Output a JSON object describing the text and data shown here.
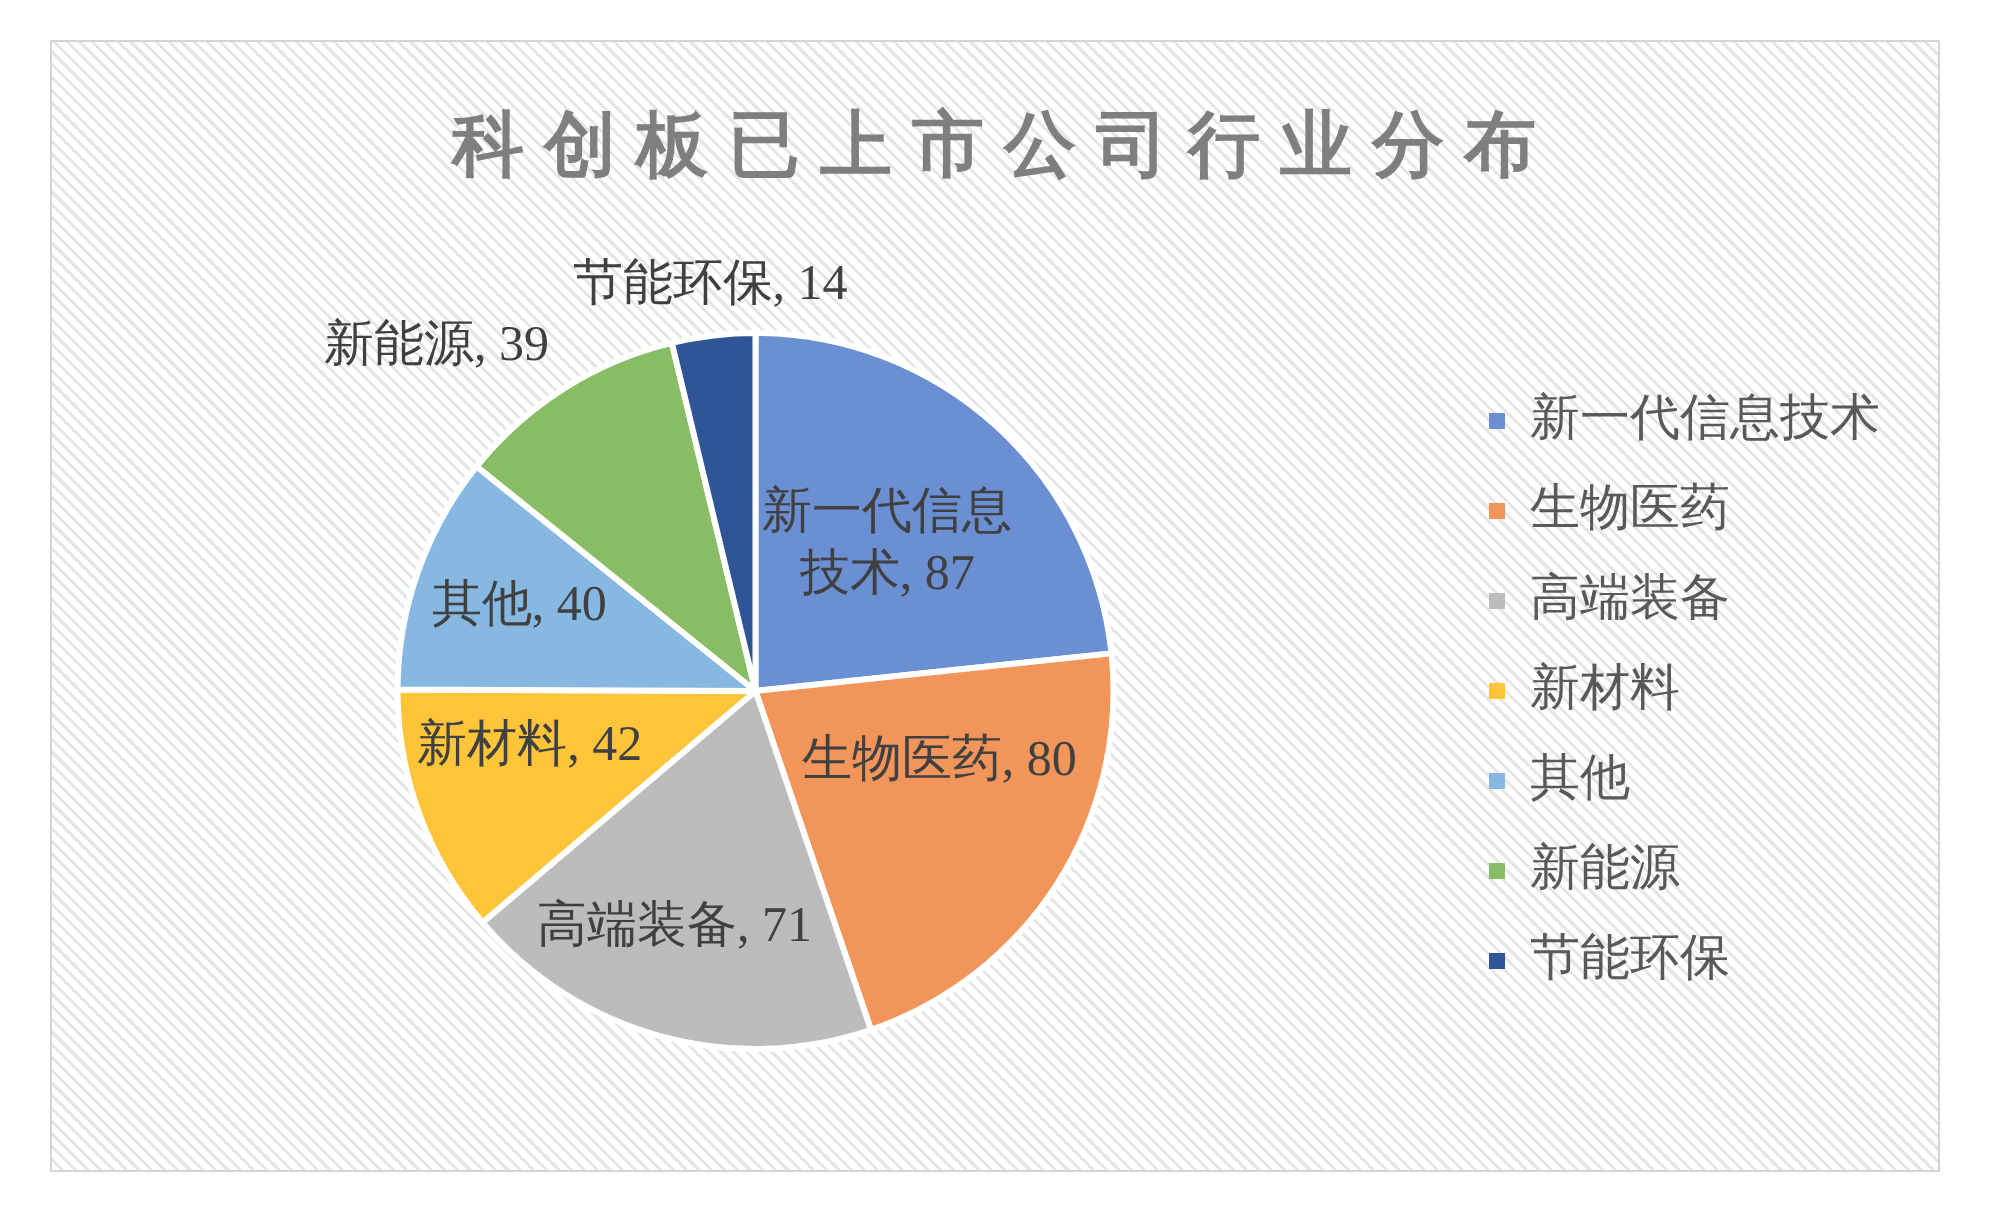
{
  "chart_data": {
    "type": "pie",
    "title": "科创板已上市公司行业分布",
    "categories": [
      "新一代信息技术",
      "生物医药",
      "高端装备",
      "新材料",
      "其他",
      "新能源",
      "节能环保"
    ],
    "values": [
      87,
      80,
      71,
      42,
      40,
      39,
      14
    ],
    "value_labels": [
      "新一代信息技术, 87",
      "生物医药, 80",
      "高端装备, 71",
      "新材料, 42",
      "其他, 40",
      "新能源, 39",
      "节能环保, 14"
    ],
    "colors": [
      "#6a8fd2",
      "#f1955a",
      "#bcbcbc",
      "#ffc53a",
      "#86b8e2",
      "#88bd66",
      "#2f5597"
    ],
    "legend": "right"
  }
}
